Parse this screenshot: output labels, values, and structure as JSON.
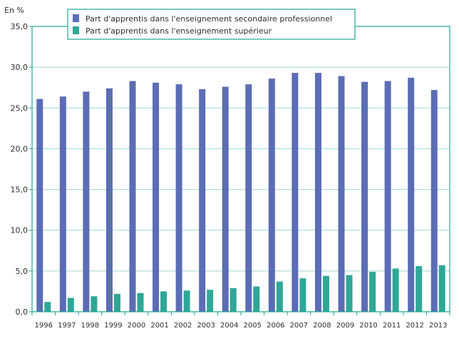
{
  "chart_data": {
    "type": "bar",
    "unit_label": "En %",
    "categories": [
      "1996",
      "1997",
      "1998",
      "1999",
      "2000",
      "2001",
      "2002",
      "2003",
      "2004",
      "2005",
      "2006",
      "2007",
      "2008",
      "2009",
      "2010",
      "2011",
      "2012",
      "2013"
    ],
    "series": [
      {
        "name": "Part d'apprentis dans l'enseignement secondaire professionnel",
        "color": "#5b6db5",
        "values": [
          26.1,
          26.4,
          27.0,
          27.4,
          28.3,
          28.1,
          27.9,
          27.3,
          27.6,
          27.9,
          28.6,
          29.3,
          29.3,
          28.9,
          28.2,
          28.3,
          28.7,
          27.2
        ]
      },
      {
        "name": "Part d'apprentis dans l'enseignement supérieur",
        "color": "#2fa797",
        "values": [
          1.2,
          1.7,
          1.9,
          2.2,
          2.3,
          2.5,
          2.6,
          2.7,
          2.9,
          3.1,
          3.7,
          4.1,
          4.4,
          4.5,
          4.9,
          5.3,
          5.6,
          5.7
        ]
      }
    ],
    "yticks": [
      "0,0",
      "5,0",
      "10,0",
      "15,0",
      "20,0",
      "25,0",
      "30,0",
      "35,0"
    ],
    "ylim": [
      0,
      35
    ],
    "grid": true,
    "legend_position": "top-left",
    "frame_color": "#1ea592"
  }
}
